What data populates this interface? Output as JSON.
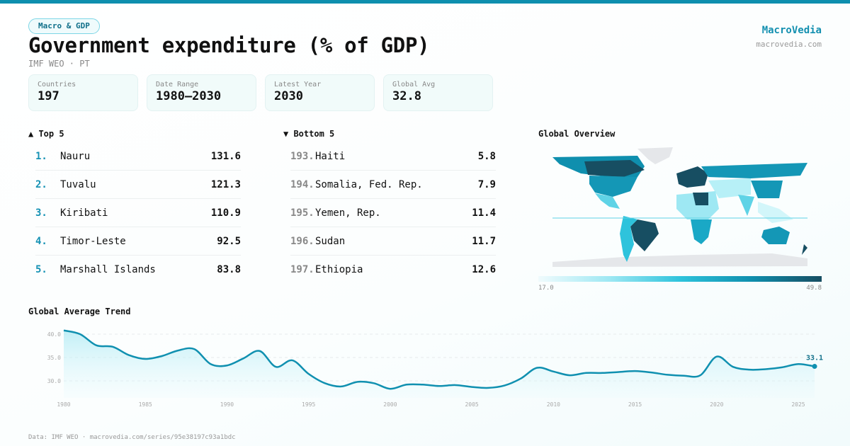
{
  "header": {
    "category": "Macro & GDP",
    "title": "Government expenditure (% of GDP)",
    "subtitle": "IMF WEO · PT",
    "brand": "MacroVedia",
    "brand_url": "macrovedia.com"
  },
  "stats": [
    {
      "label": "Countries",
      "value": "197"
    },
    {
      "label": "Date Range",
      "value": "1980–2030"
    },
    {
      "label": "Latest Year",
      "value": "2030"
    },
    {
      "label": "Global Avg",
      "value": "32.8"
    }
  ],
  "top5": {
    "title": "▲ Top 5",
    "items": [
      {
        "rank": "1.",
        "name": "Nauru",
        "value": "131.6"
      },
      {
        "rank": "2.",
        "name": "Tuvalu",
        "value": "121.3"
      },
      {
        "rank": "3.",
        "name": "Kiribati",
        "value": "110.9"
      },
      {
        "rank": "4.",
        "name": "Timor-Leste",
        "value": "92.5"
      },
      {
        "rank": "5.",
        "name": "Marshall Islands",
        "value": "83.8"
      }
    ]
  },
  "bottom5": {
    "title": "▼ Bottom 5",
    "items": [
      {
        "rank": "193.",
        "name": "Haiti",
        "value": "5.8"
      },
      {
        "rank": "194.",
        "name": "Somalia, Fed. Rep.",
        "value": "7.9"
      },
      {
        "rank": "195.",
        "name": "Yemen, Rep.",
        "value": "11.4"
      },
      {
        "rank": "196.",
        "name": "Sudan",
        "value": "11.7"
      },
      {
        "rank": "197.",
        "name": "Ethiopia",
        "value": "12.6"
      }
    ]
  },
  "map": {
    "title": "Global Overview",
    "legend_min": "17.0",
    "legend_max": "49.8",
    "colors": {
      "low": "#f0fbfd",
      "mid": "#2ec3dc",
      "high": "#174e62",
      "nodata": "#e5e7ea"
    }
  },
  "footer": "Data: IMF WEO · macrovedia.com/series/95e38197c93a1bdc",
  "chart_data": {
    "type": "area",
    "title": "Global Average Trend",
    "xlabel": "",
    "ylabel": "",
    "x": [
      1980,
      1981,
      1982,
      1983,
      1984,
      1985,
      1986,
      1987,
      1988,
      1989,
      1990,
      1991,
      1992,
      1993,
      1994,
      1995,
      1996,
      1997,
      1998,
      1999,
      2000,
      2001,
      2002,
      2003,
      2004,
      2005,
      2006,
      2007,
      2008,
      2009,
      2010,
      2011,
      2012,
      2013,
      2014,
      2015,
      2016,
      2017,
      2018,
      2019,
      2020,
      2021,
      2022,
      2023,
      2024,
      2025,
      2026
    ],
    "values": [
      40.8,
      40.0,
      37.6,
      37.3,
      35.5,
      34.7,
      35.3,
      36.5,
      36.8,
      33.6,
      33.3,
      34.8,
      36.4,
      33.0,
      34.4,
      31.5,
      29.5,
      28.8,
      29.8,
      29.5,
      28.3,
      29.2,
      29.2,
      28.9,
      29.1,
      28.7,
      28.5,
      29.0,
      30.5,
      32.8,
      32.0,
      31.2,
      31.7,
      31.7,
      31.9,
      32.1,
      31.8,
      31.3,
      31.1,
      31.2,
      35.2,
      33.0,
      32.4,
      32.5,
      32.9,
      33.6,
      33.1
    ],
    "yticks": [
      "30.0",
      "35.0",
      "40.0"
    ],
    "xticks": [
      "1980",
      "1985",
      "1990",
      "1995",
      "2000",
      "2005",
      "2010",
      "2015",
      "2020",
      "2025"
    ],
    "end_label": "33.1",
    "xlim": [
      1980,
      2026
    ],
    "ylim": [
      26.5,
      41
    ],
    "grid": true,
    "color": "#1090b0"
  }
}
